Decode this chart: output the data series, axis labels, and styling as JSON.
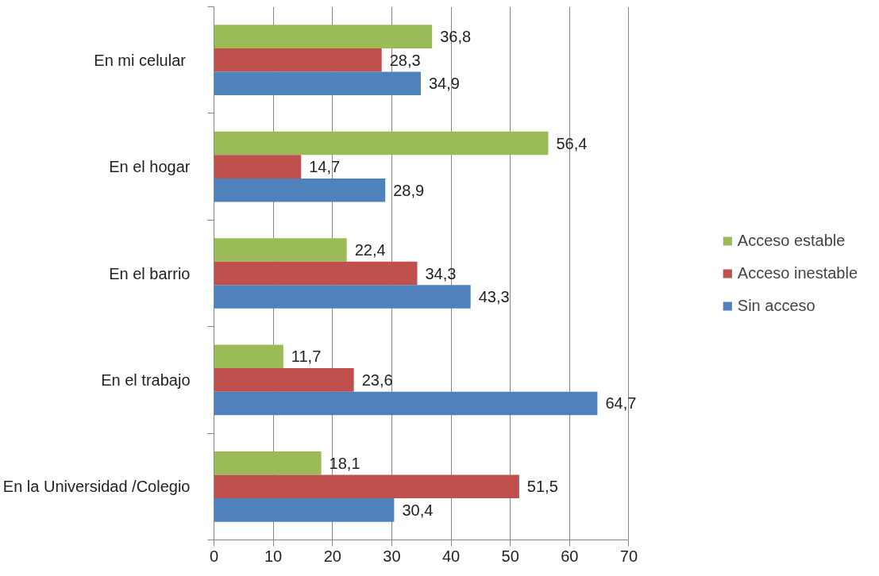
{
  "chart_data": {
    "type": "bar",
    "orientation": "horizontal",
    "categories": [
      "En mi  celular",
      "En el hogar",
      "En el barrio",
      "En el trabajo",
      "En la Universidad /Colegio"
    ],
    "series": [
      {
        "name": "Acceso estable",
        "color": "#9bbb59",
        "values": [
          36.8,
          56.4,
          22.4,
          11.7,
          18.1
        ],
        "value_labels": [
          "36,8",
          "56,4",
          "22,4",
          "11,7",
          "18,1"
        ]
      },
      {
        "name": "Acceso inestable",
        "color": "#c0504d",
        "values": [
          28.3,
          14.7,
          34.3,
          23.6,
          51.5
        ],
        "value_labels": [
          "28,3",
          "14,7",
          "34,3",
          "23,6",
          "51,5"
        ]
      },
      {
        "name": "Sin acceso",
        "color": "#4f81bd",
        "values": [
          34.9,
          28.9,
          43.3,
          64.7,
          30.4
        ],
        "value_labels": [
          "34,9",
          "28,9",
          "43,3",
          "64,7",
          "30,4"
        ]
      }
    ],
    "xlim": [
      0,
      70
    ],
    "xticks": [
      0,
      10,
      20,
      30,
      40,
      50,
      60,
      70
    ],
    "grid": "x",
    "legend": "right"
  }
}
